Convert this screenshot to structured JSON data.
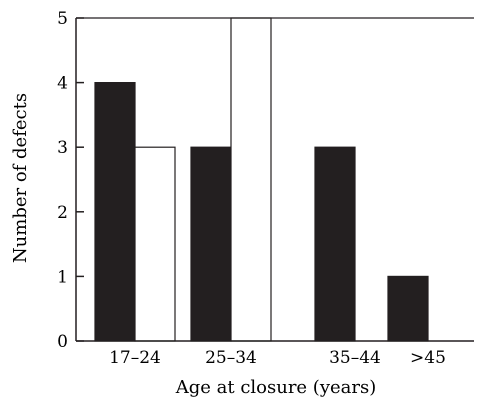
{
  "chart_data": {
    "type": "bar",
    "categories": [
      "17–24",
      "25–34",
      "35–44",
      ">45"
    ],
    "series": [
      {
        "values": [
          4,
          3,
          3,
          1
        ],
        "color": "#231f20"
      },
      {
        "values": [
          3,
          5,
          0,
          0
        ],
        "color": "#ffffff"
      }
    ],
    "title": "",
    "xlabel": "Age at closure (years)",
    "ylabel": "Number of defects",
    "ylim": [
      0,
      5
    ],
    "yticks": [
      0,
      1,
      2,
      3,
      4,
      5
    ],
    "grid": false,
    "legend": "none"
  }
}
